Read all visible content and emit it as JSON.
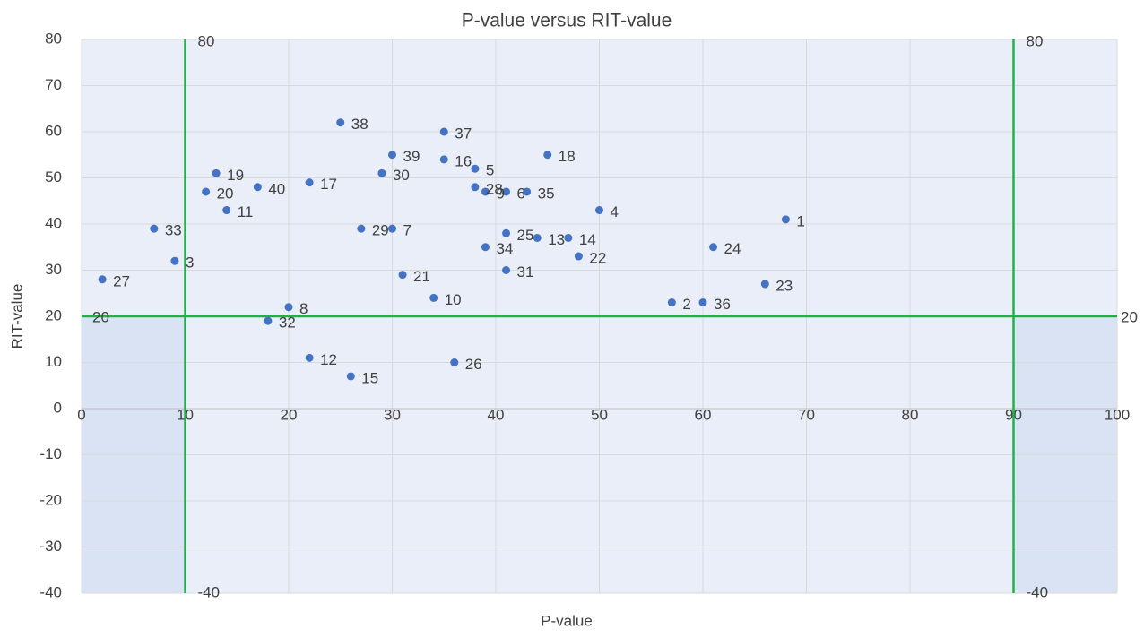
{
  "chart_data": {
    "type": "scatter",
    "title": "P-value versus RIT-value",
    "x_label": "P-value",
    "y_label": "RIT-value",
    "xlim": [
      0,
      100
    ],
    "ylim": [
      -40,
      80
    ],
    "xticks": [
      0,
      10,
      20,
      30,
      40,
      50,
      60,
      70,
      80,
      90,
      100
    ],
    "yticks": [
      -40,
      -30,
      -20,
      -10,
      0,
      10,
      20,
      30,
      40,
      50,
      60,
      70,
      80
    ],
    "grid": true,
    "color": "#4472c4",
    "labels": [
      "1",
      "2",
      "3",
      "4",
      "5",
      "6",
      "7",
      "8",
      "9",
      "10",
      "11",
      "12",
      "13",
      "14",
      "15",
      "16",
      "17",
      "18",
      "19",
      "20",
      "21",
      "22",
      "23",
      "24",
      "25",
      "26",
      "27",
      "28",
      "29",
      "30",
      "31",
      "32",
      "33",
      "34",
      "35",
      "36",
      "37",
      "38",
      "39",
      "40"
    ],
    "x": [
      68,
      57,
      9,
      50,
      38,
      41,
      30,
      20,
      39,
      34,
      14,
      22,
      44,
      47,
      26,
      35,
      22,
      45,
      13,
      12,
      31,
      48,
      66,
      61,
      41,
      36,
      2,
      38,
      27,
      29,
      41,
      18,
      7,
      39,
      43,
      60,
      35,
      25,
      30,
      17
    ],
    "y": [
      41,
      23,
      32,
      43,
      52,
      47,
      39,
      22,
      47,
      24,
      43,
      11,
      37,
      37,
      7,
      54,
      49,
      55,
      51,
      47,
      29,
      33,
      27,
      35,
      38,
      10,
      28,
      48,
      39,
      51,
      30,
      19,
      39,
      35,
      47,
      23,
      60,
      62,
      55,
      48
    ],
    "reference_lines": [
      {
        "x": [
          10,
          10
        ],
        "y": [
          -40,
          80
        ],
        "color": "#22b04b"
      },
      {
        "x": [
          90,
          90
        ],
        "y": [
          -40,
          80
        ],
        "color": "#22b04b"
      },
      {
        "x": [
          0,
          100
        ],
        "y": [
          20,
          20
        ],
        "color": "#22b04b"
      }
    ]
  }
}
